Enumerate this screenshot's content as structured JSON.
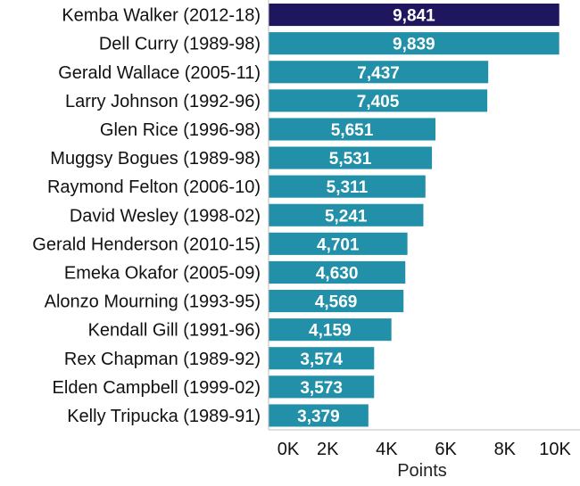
{
  "chart_data": {
    "type": "bar",
    "orientation": "horizontal",
    "categories": [
      "Kemba Walker (2012-18)",
      "Dell Curry (1989-98)",
      "Gerald Wallace (2005-11)",
      "Larry Johnson (1992-96)",
      "Glen Rice (1996-98)",
      "Muggsy Bogues (1989-98)",
      "Raymond Felton (2006-10)",
      "David Wesley (1998-02)",
      "Gerald Henderson (2010-15)",
      "Emeka Okafor (2005-09)",
      "Alonzo Mourning (1993-95)",
      "Kendall Gill (1991-96)",
      "Rex Chapman (1989-92)",
      "Elden Campbell (1999-02)",
      "Kelly Tripucka (1989-91)"
    ],
    "values": [
      9841,
      9839,
      7437,
      7405,
      5651,
      5531,
      5311,
      5241,
      4701,
      4630,
      4569,
      4159,
      3574,
      3573,
      3379
    ],
    "value_labels": [
      "9,841",
      "9,839",
      "7,437",
      "7,405",
      "5,651",
      "5,531",
      "5,311",
      "5,241",
      "4,701",
      "4,630",
      "4,569",
      "4,159",
      "3,574",
      "3,573",
      "3,379"
    ],
    "highlight_index": 0,
    "xlabel": "Points",
    "xlim": [
      0,
      10000
    ],
    "xticks": [
      0,
      2000,
      4000,
      6000,
      8000,
      10000
    ],
    "xtick_labels": [
      "0K",
      "2K",
      "4K",
      "6K",
      "8K",
      "10K"
    ],
    "grid": false,
    "colors": {
      "bar": "#2190a8",
      "highlight": "#1f1660",
      "axis": "#bdbdbd",
      "label_text": "#ffffff"
    }
  }
}
